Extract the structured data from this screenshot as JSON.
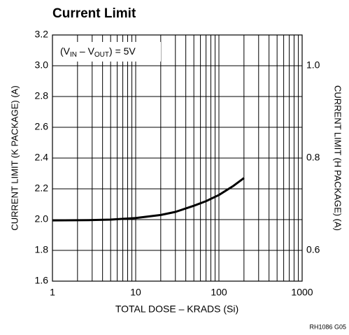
{
  "chart_data": {
    "type": "line",
    "title": "Current Limit",
    "xlabel": "TOTAL DOSE – KRADS (Si)",
    "ylabel": "CURRENT LIMIT (K PACKAGE) (A)",
    "y2label": "CURRENT LIMIT (H PACKAGE) (A)",
    "annotation": [
      "(V",
      "IN",
      " – V",
      "OUT",
      ") = 5V"
    ],
    "footnote": "RH1086 G05",
    "xscale": "log",
    "xlim": [
      1,
      1000
    ],
    "xticks": [
      1,
      10,
      100,
      1000
    ],
    "ylim": [
      1.6,
      3.2
    ],
    "yticks": [
      1.6,
      1.8,
      {
        "value": 2.0,
        "label": "2.0"
      },
      2.2,
      2.4,
      2.6,
      2.8,
      {
        "value": 3.0,
        "label": "3.0"
      },
      3.2
    ],
    "y2lim": [
      0.5333,
      1.0667
    ],
    "y2ticks": [
      0.6,
      0.8,
      {
        "value": 1.0,
        "label": "1.0"
      }
    ],
    "grid": true,
    "minor_grid": true,
    "series": [
      {
        "color": "#000000",
        "x": [
          1,
          3,
          5,
          10,
          20,
          30,
          50,
          70,
          100,
          150,
          200
        ],
        "values": [
          1.995,
          1.997,
          2.0,
          2.01,
          2.03,
          2.05,
          2.09,
          2.12,
          2.16,
          2.22,
          2.27
        ]
      }
    ]
  }
}
